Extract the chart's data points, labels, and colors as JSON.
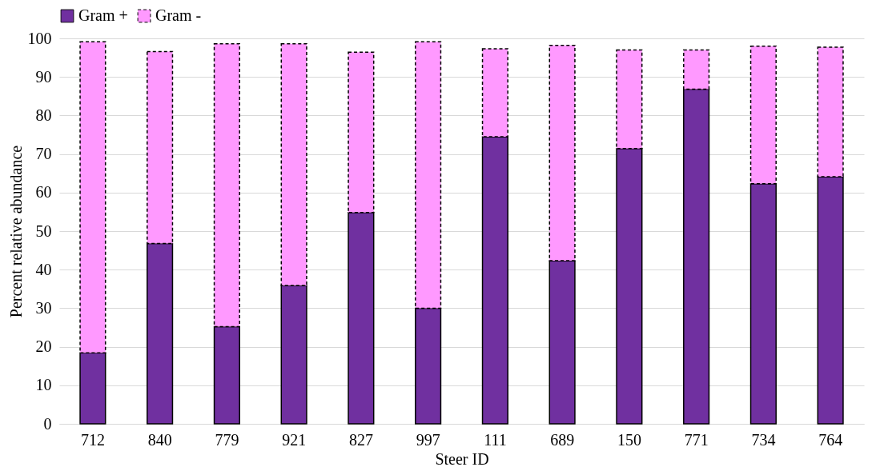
{
  "chart_data": {
    "type": "bar",
    "stacked": true,
    "xlabel": "Steer ID",
    "ylabel": "Percent relative abundance",
    "categories": [
      "712",
      "840",
      "779",
      "921",
      "827",
      "997",
      "111",
      "689",
      "150",
      "771",
      "734",
      "764"
    ],
    "series": [
      {
        "name": "Gram +",
        "color": "#7030a0",
        "line_style": "solid",
        "values": [
          18.4,
          46.8,
          25.2,
          35.9,
          54.8,
          30.0,
          74.5,
          42.3,
          71.4,
          86.8,
          62.3,
          64.1
        ]
      },
      {
        "name": "Gram -",
        "color": "#ff99ff",
        "line_style": "dashed",
        "values": [
          80.7,
          49.8,
          73.4,
          62.7,
          41.6,
          69.1,
          22.8,
          55.9,
          25.6,
          10.2,
          35.7,
          33.6
        ]
      }
    ],
    "ylim": [
      0,
      100
    ],
    "yticks": [
      0,
      10,
      20,
      30,
      40,
      50,
      60,
      70,
      80,
      90,
      100
    ],
    "grid": "y",
    "legend": "top"
  }
}
